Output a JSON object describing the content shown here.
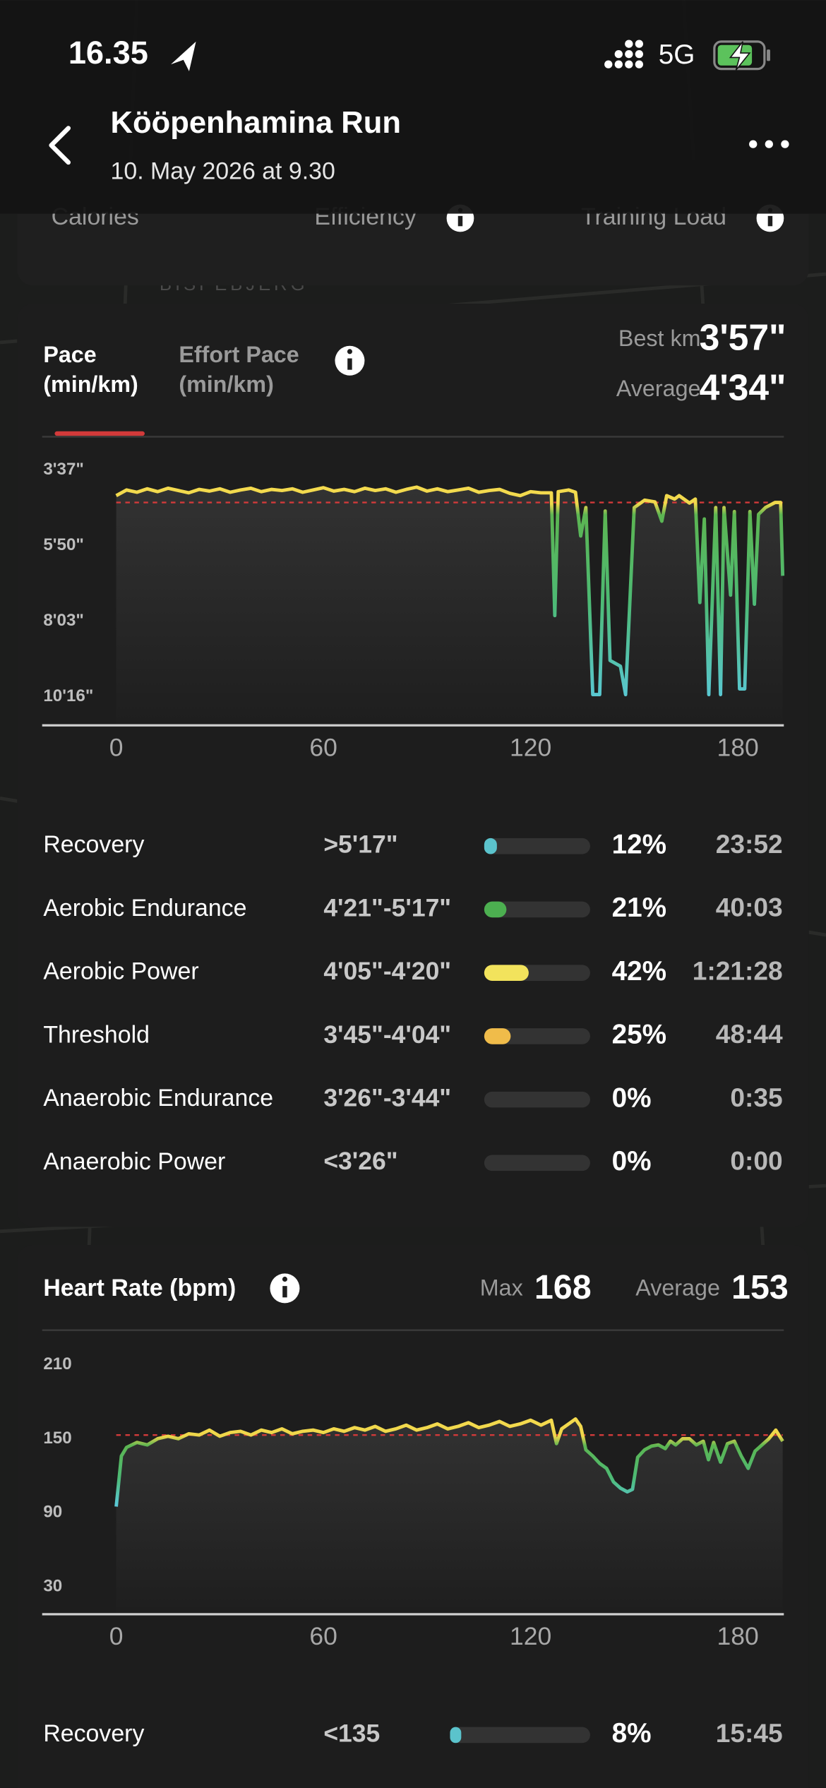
{
  "status_bar": {
    "time": "16.35",
    "network": "5G"
  },
  "header": {
    "title": "Kööpenhamina Run",
    "subtitle": "10. May 2026 at 9.30"
  },
  "summary_card": {
    "labels": [
      "Calories",
      "Efficiency",
      "Training Load"
    ]
  },
  "map": {
    "label": "BISPEBJERG"
  },
  "chart_data": [
    {
      "type": "line",
      "tabs": [
        [
          "Pace",
          "(min/km)"
        ],
        [
          "Effort Pace",
          "(min/km)"
        ]
      ],
      "best_label": "Best km",
      "best": {
        "value": 237,
        "label": "3'57\""
      },
      "average_label": "Average",
      "average": {
        "value": 274,
        "label": "4'34\""
      },
      "xlim": [
        0,
        193
      ],
      "xticks": [
        0,
        60,
        120,
        180
      ],
      "ylim": [
        616,
        217
      ],
      "yticks": [
        {
          "value": 217,
          "label": "3'37\""
        },
        {
          "value": 350,
          "label": "5'50\""
        },
        {
          "value": 483,
          "label": "8'03\""
        },
        {
          "value": 616,
          "label": "10'16\""
        }
      ],
      "x": [
        0,
        3,
        6,
        9,
        12,
        15,
        18,
        21,
        24,
        27,
        30,
        33,
        36,
        39,
        42,
        45,
        48,
        51,
        54,
        57,
        60,
        63,
        66,
        69,
        72,
        75,
        78,
        81,
        84,
        87,
        90,
        93,
        96,
        99,
        102,
        105,
        108,
        111,
        114,
        117,
        120,
        123,
        126,
        127,
        128,
        131,
        133,
        134.5,
        136,
        138,
        140,
        141.6,
        143,
        146,
        147.5,
        150,
        153,
        156,
        158,
        159.4,
        161.7,
        163,
        166,
        167.7,
        169,
        170.3,
        171.6,
        173.6,
        175,
        176,
        177.9,
        179,
        180.5,
        182,
        183.5,
        184.8,
        186,
        188,
        190.8,
        192.4,
        193
      ],
      "values": [
        262,
        252,
        256,
        250,
        255,
        249,
        253,
        257,
        251,
        254,
        250,
        256,
        252,
        249,
        255,
        251,
        253,
        250,
        256,
        252,
        248,
        254,
        251,
        255,
        249,
        253,
        250,
        256,
        251,
        247,
        254,
        250,
        255,
        252,
        249,
        256,
        253,
        251,
        258,
        262,
        255,
        257,
        257,
        473,
        255,
        252,
        256,
        333,
        283,
        612,
        612,
        289,
        552,
        562,
        612,
        283,
        270,
        273,
        307,
        262,
        268,
        262,
        275,
        268,
        450,
        303,
        612,
        283,
        612,
        283,
        437,
        290,
        602,
        602,
        290,
        453,
        295,
        283,
        274,
        274,
        403
      ],
      "zones": {
        "names": [
          "Recovery",
          "Aerobic Endurance",
          "Aerobic Power",
          "Threshold",
          "Anaerobic Endurance",
          "Anaerobic Power"
        ],
        "ranges": [
          ">5'17\"",
          "4'21\"-5'17\"",
          "4'05\"-4'20\"",
          "3'45\"-4'04\"",
          "3'26\"-3'44\"",
          "<3'26\""
        ],
        "values": [
          12,
          21,
          42,
          25,
          0,
          0
        ],
        "value_labels": [
          "12%",
          "21%",
          "42%",
          "25%",
          "0%",
          "0%"
        ],
        "times": [
          "23:52",
          "40:03",
          "1:21:28",
          "48:44",
          "0:35",
          "0:00"
        ],
        "colors": [
          "#5bc3cc",
          "#4caf50",
          "#f2e35c",
          "#f0bc4a",
          "#e07b39",
          "#d0393a"
        ]
      }
    },
    {
      "type": "line",
      "title": "Heart Rate (bpm)",
      "max_label": "Max",
      "max": 168,
      "average_label": "Average",
      "average": 153,
      "xlim": [
        0,
        193
      ],
      "xticks": [
        0,
        60,
        120,
        180
      ],
      "ylim": [
        30,
        210
      ],
      "yticks": [
        210,
        150,
        90,
        30
      ],
      "x": [
        0,
        1.5,
        3,
        6,
        9,
        12,
        15,
        18,
        21,
        24,
        27,
        30,
        33,
        36,
        39,
        42,
        45,
        48,
        51,
        54,
        57,
        60,
        63,
        66,
        69,
        72,
        75,
        78,
        81,
        84,
        87,
        90,
        93,
        96,
        99,
        102,
        105,
        108,
        111,
        114,
        117,
        120,
        123,
        126,
        127.5,
        129,
        131,
        133,
        134.5,
        136,
        138,
        140,
        142,
        144,
        146,
        148,
        149.5,
        151,
        153,
        155,
        157,
        159,
        160.5,
        162,
        164,
        166,
        168,
        170,
        171.5,
        173,
        175,
        177,
        179,
        181,
        183,
        185,
        187,
        189,
        191,
        193
      ],
      "values": [
        95,
        136,
        143,
        147,
        145,
        150,
        152,
        150,
        154,
        153,
        157,
        152,
        155,
        156,
        153,
        157,
        155,
        158,
        154,
        156,
        157,
        155,
        158,
        156,
        159,
        157,
        160,
        156,
        158,
        161,
        157,
        159,
        162,
        158,
        160,
        163,
        159,
        161,
        164,
        160,
        162,
        165,
        161,
        165,
        146,
        158,
        162,
        166,
        160,
        141,
        136,
        130,
        126,
        115,
        110,
        107,
        109,
        135,
        141,
        144,
        145,
        142,
        148,
        145,
        150,
        150,
        145,
        148,
        133,
        147,
        131,
        146,
        148,
        136,
        126,
        140,
        145,
        150,
        157,
        148
      ],
      "zones": {
        "names": [
          "Recovery"
        ],
        "ranges": [
          "<135"
        ],
        "values": [
          8
        ],
        "value_labels": [
          "8%"
        ],
        "times": [
          "15:45"
        ],
        "colors": [
          "#5bc3cc"
        ]
      }
    }
  ]
}
